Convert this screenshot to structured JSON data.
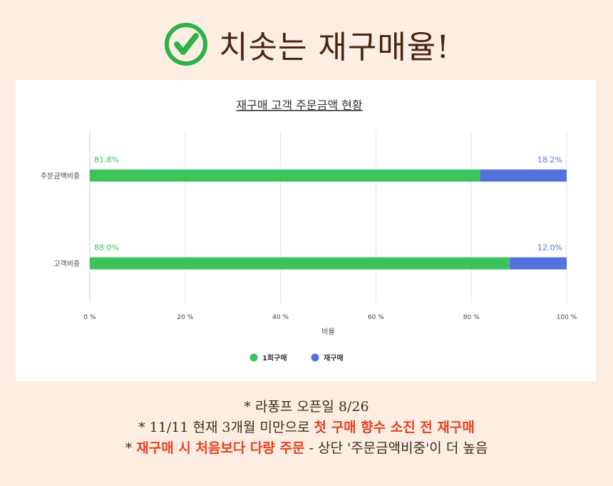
{
  "headline": {
    "text": "치솟는 재구매율!",
    "icon": "check-circle-icon",
    "icon_color": "#2eb14a"
  },
  "chart_data": {
    "type": "bar",
    "orientation": "horizontal",
    "stacked": true,
    "percent": true,
    "title": "재구매 고객 주문금액 현황",
    "categories": [
      "주문금액비중",
      "고객비중"
    ],
    "series": [
      {
        "name": "1회구매",
        "values": [
          81.8,
          88.0
        ],
        "labels": [
          "81.8%",
          "88.0%"
        ],
        "color": "#3cc45a"
      },
      {
        "name": "재구매",
        "values": [
          18.2,
          12.0
        ],
        "labels": [
          "18.2%",
          "12.0%"
        ],
        "color": "#5572dc"
      }
    ],
    "xlim": [
      0,
      100
    ],
    "xticks": [
      0,
      20,
      40,
      60,
      80,
      100
    ],
    "xtick_labels": [
      "0 %",
      "20 %",
      "40 %",
      "60 %",
      "80 %",
      "100 %"
    ],
    "xlabel": "비율",
    "ylabel": "",
    "grid": true,
    "legend_position": "bottom"
  },
  "notes": {
    "line1": "* 라퐁프 오픈일 8/26",
    "line2_prefix": "* 11/11 현재 3개월 미만으로 ",
    "line2_highlight": "첫 구매 향수 소진 전 재구매",
    "line3_star": "* ",
    "line3_highlight": "재구매 시 처음보다 다량 주문",
    "line3_suffix": " - 상단 '주문금액비중'이 더 높음",
    "highlight_color": "#e8401e"
  }
}
